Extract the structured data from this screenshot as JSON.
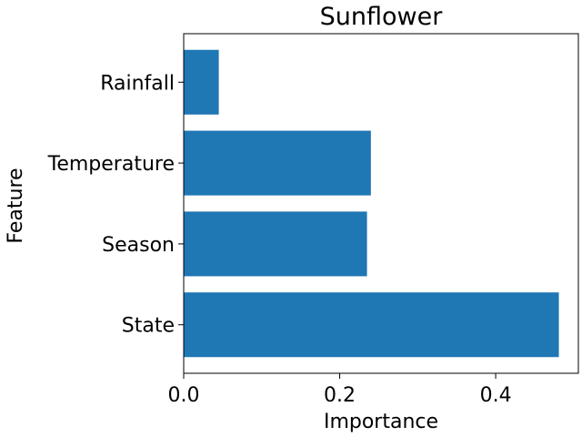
{
  "chart_data": {
    "type": "bar",
    "orientation": "horizontal",
    "title": "Sunflower",
    "xlabel": "Importance",
    "ylabel": "Feature",
    "categories": [
      "State",
      "Season",
      "Temperature",
      "Rainfall"
    ],
    "values": [
      0.481,
      0.235,
      0.24,
      0.045
    ],
    "xlim": [
      0.0,
      0.506
    ],
    "xticks": [
      "0.0",
      "0.2",
      "0.4"
    ],
    "grid": false,
    "bar_color": "#1f77b4"
  }
}
